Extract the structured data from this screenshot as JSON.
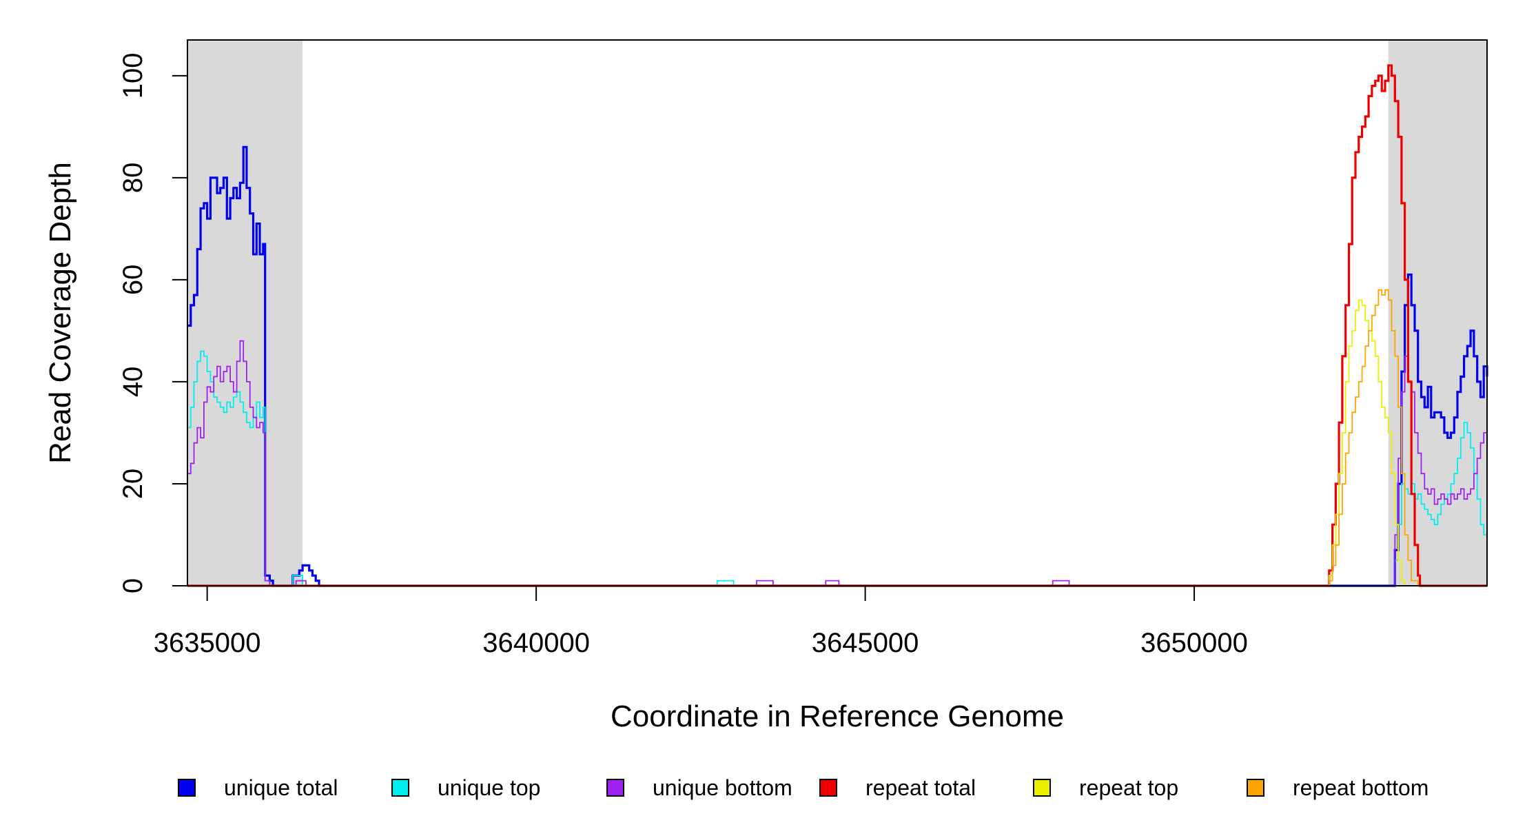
{
  "chart_data": {
    "type": "line",
    "xlabel": "Coordinate in Reference Genome",
    "ylabel": "Read Coverage Depth",
    "xlim": [
      3634700,
      3654450
    ],
    "ylim": [
      0,
      107
    ],
    "x_ticks": [
      3635000,
      3640000,
      3645000,
      3650000
    ],
    "x_tick_labels": [
      "3635000",
      "3640000",
      "3645000",
      "3650000"
    ],
    "y_ticks": [
      0,
      20,
      40,
      60,
      80,
      100
    ],
    "y_tick_labels": [
      "0",
      "20",
      "40",
      "60",
      "80",
      "100"
    ],
    "grid": false,
    "legend_position": "bottom",
    "shaded_regions": [
      {
        "from": 3634700,
        "to": 3636450,
        "color": "#d9d9d9"
      },
      {
        "from": 3652950,
        "to": 3654450,
        "color": "#d9d9d9"
      }
    ],
    "series": [
      {
        "name": "unique total",
        "color": "#0000ee",
        "width": 3.2,
        "points": [
          [
            3634700,
            51
          ],
          [
            3634750,
            55
          ],
          [
            3634800,
            57
          ],
          [
            3634850,
            66
          ],
          [
            3634900,
            74
          ],
          [
            3634950,
            75
          ],
          [
            3635000,
            72
          ],
          [
            3635050,
            80
          ],
          [
            3635100,
            80
          ],
          [
            3635150,
            77
          ],
          [
            3635200,
            78
          ],
          [
            3635250,
            80
          ],
          [
            3635300,
            72
          ],
          [
            3635350,
            76
          ],
          [
            3635400,
            78
          ],
          [
            3635450,
            76
          ],
          [
            3635500,
            79
          ],
          [
            3635550,
            86
          ],
          [
            3635600,
            78
          ],
          [
            3635650,
            73
          ],
          [
            3635700,
            65
          ],
          [
            3635750,
            71
          ],
          [
            3635800,
            65
          ],
          [
            3635850,
            67
          ],
          [
            3635880,
            2
          ],
          [
            3635950,
            1
          ],
          [
            3636000,
            0
          ],
          [
            3636250,
            0
          ],
          [
            3636300,
            2
          ],
          [
            3636400,
            3
          ],
          [
            3636450,
            4
          ],
          [
            3636550,
            3
          ],
          [
            3636600,
            2
          ],
          [
            3636650,
            1
          ],
          [
            3636700,
            0
          ],
          [
            3653000,
            0
          ],
          [
            3653050,
            7
          ],
          [
            3653100,
            20
          ],
          [
            3653150,
            42
          ],
          [
            3653200,
            55
          ],
          [
            3653250,
            61
          ],
          [
            3653300,
            55
          ],
          [
            3653350,
            50
          ],
          [
            3653400,
            40
          ],
          [
            3653450,
            37
          ],
          [
            3653500,
            35
          ],
          [
            3653550,
            39
          ],
          [
            3653600,
            33
          ],
          [
            3653650,
            34
          ],
          [
            3653700,
            34
          ],
          [
            3653750,
            33
          ],
          [
            3653800,
            30
          ],
          [
            3653850,
            29
          ],
          [
            3653900,
            30
          ],
          [
            3653950,
            33
          ],
          [
            3654000,
            38
          ],
          [
            3654050,
            41
          ],
          [
            3654100,
            45
          ],
          [
            3654150,
            47
          ],
          [
            3654200,
            50
          ],
          [
            3654250,
            45
          ],
          [
            3654300,
            40
          ],
          [
            3654350,
            37
          ],
          [
            3654400,
            43
          ],
          [
            3654450,
            41
          ]
        ]
      },
      {
        "name": "unique top",
        "color": "#00eeee",
        "width": 1.8,
        "points": [
          [
            3634700,
            31
          ],
          [
            3634750,
            35
          ],
          [
            3634800,
            40
          ],
          [
            3634850,
            44
          ],
          [
            3634900,
            46
          ],
          [
            3634950,
            45
          ],
          [
            3635000,
            42
          ],
          [
            3635050,
            40
          ],
          [
            3635100,
            37
          ],
          [
            3635150,
            36
          ],
          [
            3635200,
            35
          ],
          [
            3635250,
            34
          ],
          [
            3635300,
            36
          ],
          [
            3635350,
            35
          ],
          [
            3635400,
            37
          ],
          [
            3635450,
            38
          ],
          [
            3635500,
            36
          ],
          [
            3635550,
            34
          ],
          [
            3635600,
            32
          ],
          [
            3635650,
            31
          ],
          [
            3635700,
            33
          ],
          [
            3635750,
            36
          ],
          [
            3635800,
            33
          ],
          [
            3635850,
            35
          ],
          [
            3635880,
            1
          ],
          [
            3635950,
            0
          ],
          [
            3636250,
            0
          ],
          [
            3636300,
            2
          ],
          [
            3636400,
            2
          ],
          [
            3636450,
            0
          ],
          [
            3642700,
            0
          ],
          [
            3642750,
            1
          ],
          [
            3642950,
            1
          ],
          [
            3643000,
            0
          ],
          [
            3653000,
            0
          ],
          [
            3653050,
            5
          ],
          [
            3653100,
            12
          ],
          [
            3653150,
            20
          ],
          [
            3653200,
            19
          ],
          [
            3653250,
            18
          ],
          [
            3653300,
            20
          ],
          [
            3653350,
            17
          ],
          [
            3653400,
            18
          ],
          [
            3653450,
            16
          ],
          [
            3653500,
            15
          ],
          [
            3653550,
            14
          ],
          [
            3653600,
            13
          ],
          [
            3653650,
            12
          ],
          [
            3653700,
            14
          ],
          [
            3653750,
            16
          ],
          [
            3653800,
            17
          ],
          [
            3653850,
            18
          ],
          [
            3653900,
            20
          ],
          [
            3653950,
            22
          ],
          [
            3654000,
            25
          ],
          [
            3654050,
            29
          ],
          [
            3654100,
            32
          ],
          [
            3654150,
            30
          ],
          [
            3654200,
            27
          ],
          [
            3654250,
            22
          ],
          [
            3654300,
            17
          ],
          [
            3654350,
            12
          ],
          [
            3654400,
            10
          ],
          [
            3654450,
            20
          ]
        ]
      },
      {
        "name": "unique bottom",
        "color": "#a020f0",
        "width": 1.8,
        "points": [
          [
            3634700,
            22
          ],
          [
            3634750,
            24
          ],
          [
            3634800,
            28
          ],
          [
            3634850,
            31
          ],
          [
            3634900,
            29
          ],
          [
            3634950,
            36
          ],
          [
            3635000,
            39
          ],
          [
            3635050,
            38
          ],
          [
            3635100,
            41
          ],
          [
            3635150,
            43
          ],
          [
            3635200,
            40
          ],
          [
            3635250,
            42
          ],
          [
            3635300,
            43
          ],
          [
            3635350,
            40
          ],
          [
            3635400,
            38
          ],
          [
            3635450,
            44
          ],
          [
            3635500,
            48
          ],
          [
            3635550,
            44
          ],
          [
            3635600,
            40
          ],
          [
            3635650,
            35
          ],
          [
            3635700,
            33
          ],
          [
            3635750,
            31
          ],
          [
            3635800,
            32
          ],
          [
            3635850,
            30
          ],
          [
            3635880,
            1
          ],
          [
            3635950,
            0
          ],
          [
            3636300,
            0
          ],
          [
            3636350,
            1
          ],
          [
            3636450,
            1
          ],
          [
            3636500,
            0
          ],
          [
            3643300,
            0
          ],
          [
            3643350,
            1
          ],
          [
            3643550,
            1
          ],
          [
            3643600,
            0
          ],
          [
            3644350,
            0
          ],
          [
            3644400,
            1
          ],
          [
            3644550,
            1
          ],
          [
            3644600,
            0
          ],
          [
            3647800,
            0
          ],
          [
            3647850,
            1
          ],
          [
            3648050,
            1
          ],
          [
            3648100,
            0
          ],
          [
            3653000,
            0
          ],
          [
            3653050,
            10
          ],
          [
            3653100,
            25
          ],
          [
            3653150,
            38
          ],
          [
            3653200,
            45
          ],
          [
            3653250,
            40
          ],
          [
            3653300,
            38
          ],
          [
            3653350,
            30
          ],
          [
            3653400,
            26
          ],
          [
            3653450,
            22
          ],
          [
            3653500,
            19
          ],
          [
            3653550,
            18
          ],
          [
            3653600,
            19
          ],
          [
            3653650,
            16
          ],
          [
            3653700,
            17
          ],
          [
            3653750,
            18
          ],
          [
            3653800,
            17
          ],
          [
            3653850,
            16
          ],
          [
            3653900,
            18
          ],
          [
            3653950,
            17
          ],
          [
            3654000,
            18
          ],
          [
            3654050,
            19
          ],
          [
            3654100,
            17
          ],
          [
            3654150,
            18
          ],
          [
            3654200,
            19
          ],
          [
            3654250,
            22
          ],
          [
            3654300,
            25
          ],
          [
            3654350,
            28
          ],
          [
            3654400,
            30
          ],
          [
            3654450,
            25
          ]
        ]
      },
      {
        "name": "repeat total",
        "color": "#ee0000",
        "width": 3.2,
        "points": [
          [
            3634700,
            0
          ],
          [
            3652030,
            0
          ],
          [
            3652050,
            3
          ],
          [
            3652100,
            12
          ],
          [
            3652150,
            20
          ],
          [
            3652200,
            32
          ],
          [
            3652250,
            45
          ],
          [
            3652300,
            55
          ],
          [
            3652350,
            67
          ],
          [
            3652400,
            80
          ],
          [
            3652450,
            85
          ],
          [
            3652500,
            88
          ],
          [
            3652550,
            90
          ],
          [
            3652600,
            92
          ],
          [
            3652650,
            96
          ],
          [
            3652700,
            98
          ],
          [
            3652750,
            99
          ],
          [
            3652800,
            100
          ],
          [
            3652850,
            97
          ],
          [
            3652900,
            99
          ],
          [
            3652950,
            102
          ],
          [
            3653000,
            100
          ],
          [
            3653050,
            95
          ],
          [
            3653100,
            88
          ],
          [
            3653150,
            75
          ],
          [
            3653200,
            60
          ],
          [
            3653250,
            40
          ],
          [
            3653300,
            18
          ],
          [
            3653350,
            8
          ],
          [
            3653400,
            2
          ],
          [
            3653430,
            0
          ],
          [
            3654450,
            0
          ]
        ]
      },
      {
        "name": "repeat top",
        "color": "#eeee00",
        "width": 1.8,
        "points": [
          [
            3634700,
            0
          ],
          [
            3652030,
            0
          ],
          [
            3652050,
            2
          ],
          [
            3652100,
            8
          ],
          [
            3652150,
            14
          ],
          [
            3652200,
            22
          ],
          [
            3652250,
            30
          ],
          [
            3652300,
            40
          ],
          [
            3652350,
            47
          ],
          [
            3652400,
            50
          ],
          [
            3652450,
            54
          ],
          [
            3652500,
            56
          ],
          [
            3652550,
            55
          ],
          [
            3652600,
            52
          ],
          [
            3652650,
            50
          ],
          [
            3652700,
            48
          ],
          [
            3652750,
            45
          ],
          [
            3652800,
            40
          ],
          [
            3652850,
            35
          ],
          [
            3652900,
            33
          ],
          [
            3652950,
            30
          ],
          [
            3653000,
            22
          ],
          [
            3653050,
            12
          ],
          [
            3653100,
            5
          ],
          [
            3653150,
            1
          ],
          [
            3653200,
            0
          ],
          [
            3654450,
            0
          ]
        ]
      },
      {
        "name": "repeat bottom",
        "color": "#ffa500",
        "width": 1.8,
        "points": [
          [
            3634700,
            0
          ],
          [
            3652030,
            0
          ],
          [
            3652050,
            1
          ],
          [
            3652100,
            4
          ],
          [
            3652150,
            8
          ],
          [
            3652200,
            14
          ],
          [
            3652250,
            20
          ],
          [
            3652300,
            26
          ],
          [
            3652350,
            30
          ],
          [
            3652400,
            34
          ],
          [
            3652450,
            37
          ],
          [
            3652500,
            40
          ],
          [
            3652550,
            43
          ],
          [
            3652600,
            47
          ],
          [
            3652650,
            50
          ],
          [
            3652700,
            53
          ],
          [
            3652750,
            55
          ],
          [
            3652800,
            58
          ],
          [
            3652850,
            57
          ],
          [
            3652900,
            58
          ],
          [
            3652950,
            56
          ],
          [
            3653000,
            50
          ],
          [
            3653050,
            45
          ],
          [
            3653100,
            35
          ],
          [
            3653150,
            22
          ],
          [
            3653200,
            10
          ],
          [
            3653250,
            5
          ],
          [
            3653300,
            1
          ],
          [
            3653400,
            0
          ],
          [
            3654450,
            0
          ]
        ]
      }
    ]
  }
}
